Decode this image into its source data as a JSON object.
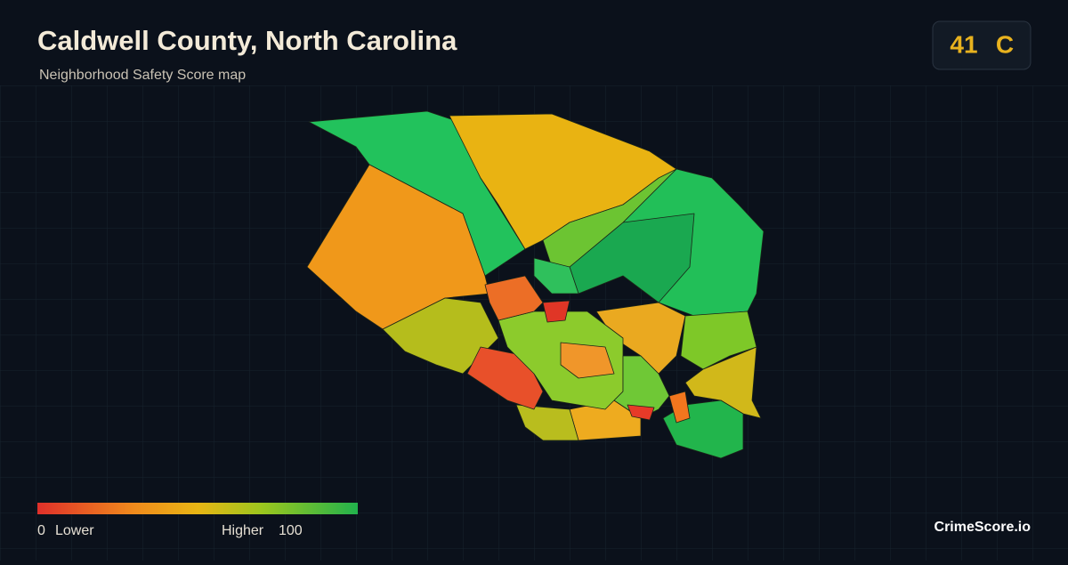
{
  "header": {
    "title": "Caldwell County, North Carolina",
    "subtitle": "Neighborhood Safety Score map"
  },
  "score": {
    "value": 41,
    "grade": "C"
  },
  "legend": {
    "min": 0,
    "min_label": "Lower",
    "max_label": "Higher",
    "max": 100
  },
  "brand": "CrimeScore.io"
}
